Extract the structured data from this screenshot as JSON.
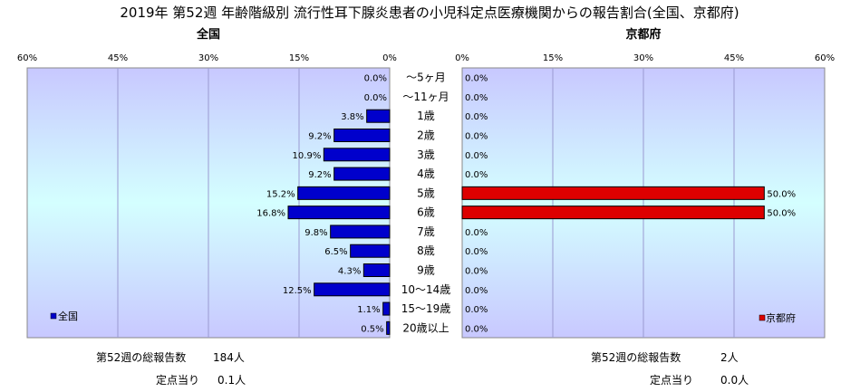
{
  "title": "2019年 第52週 年齢階級別 流行性耳下腺炎患者の小児科定点医療機関からの報告割合(全国、京都府)",
  "chart_data": {
    "type": "bar",
    "categories": [
      "～5ヶ月",
      "～11ヶ月",
      "1歳",
      "2歳",
      "3歳",
      "4歳",
      "5歳",
      "6歳",
      "7歳",
      "8歳",
      "9歳",
      "10～14歳",
      "15～19歳",
      "20歳以上"
    ],
    "xlim": [
      0,
      60
    ],
    "x_ticks": [
      "60%",
      "45%",
      "30%",
      "15%",
      "0%"
    ],
    "x_ticks_right": [
      "0%",
      "15%",
      "30%",
      "45%",
      "60%"
    ],
    "series": [
      {
        "name": "全国",
        "panel_title": "全国",
        "color": "#0000cc",
        "values": [
          0.0,
          0.0,
          3.8,
          9.2,
          10.9,
          9.2,
          15.2,
          16.8,
          9.8,
          6.5,
          4.3,
          12.5,
          1.1,
          0.5
        ],
        "labels": [
          "0.0%",
          "0.0%",
          "3.8%",
          "9.2%",
          "10.9%",
          "9.2%",
          "15.2%",
          "16.8%",
          "9.8%",
          "6.5%",
          "4.3%",
          "12.5%",
          "1.1%",
          "0.5%"
        ]
      },
      {
        "name": "京都府",
        "panel_title": "京都府",
        "color": "#dd0000",
        "values": [
          0.0,
          0.0,
          0.0,
          0.0,
          0.0,
          0.0,
          50.0,
          50.0,
          0.0,
          0.0,
          0.0,
          0.0,
          0.0,
          0.0
        ],
        "labels": [
          "0.0%",
          "0.0%",
          "0.0%",
          "0.0%",
          "0.0%",
          "0.0%",
          "50.0%",
          "50.0%",
          "0.0%",
          "0.0%",
          "0.0%",
          "0.0%",
          "0.0%",
          "0.0%"
        ]
      }
    ],
    "legend": [
      "bottom-left",
      "bottom-right"
    ]
  },
  "summary": {
    "left": {
      "total_label": "第52週の総報告数",
      "total_value": "184人",
      "per_label": "定点当り",
      "per_value": "0.1人"
    },
    "right": {
      "total_label": "第52週の総報告数",
      "total_value": "2人",
      "per_label": "定点当り",
      "per_value": "0.0人"
    }
  }
}
